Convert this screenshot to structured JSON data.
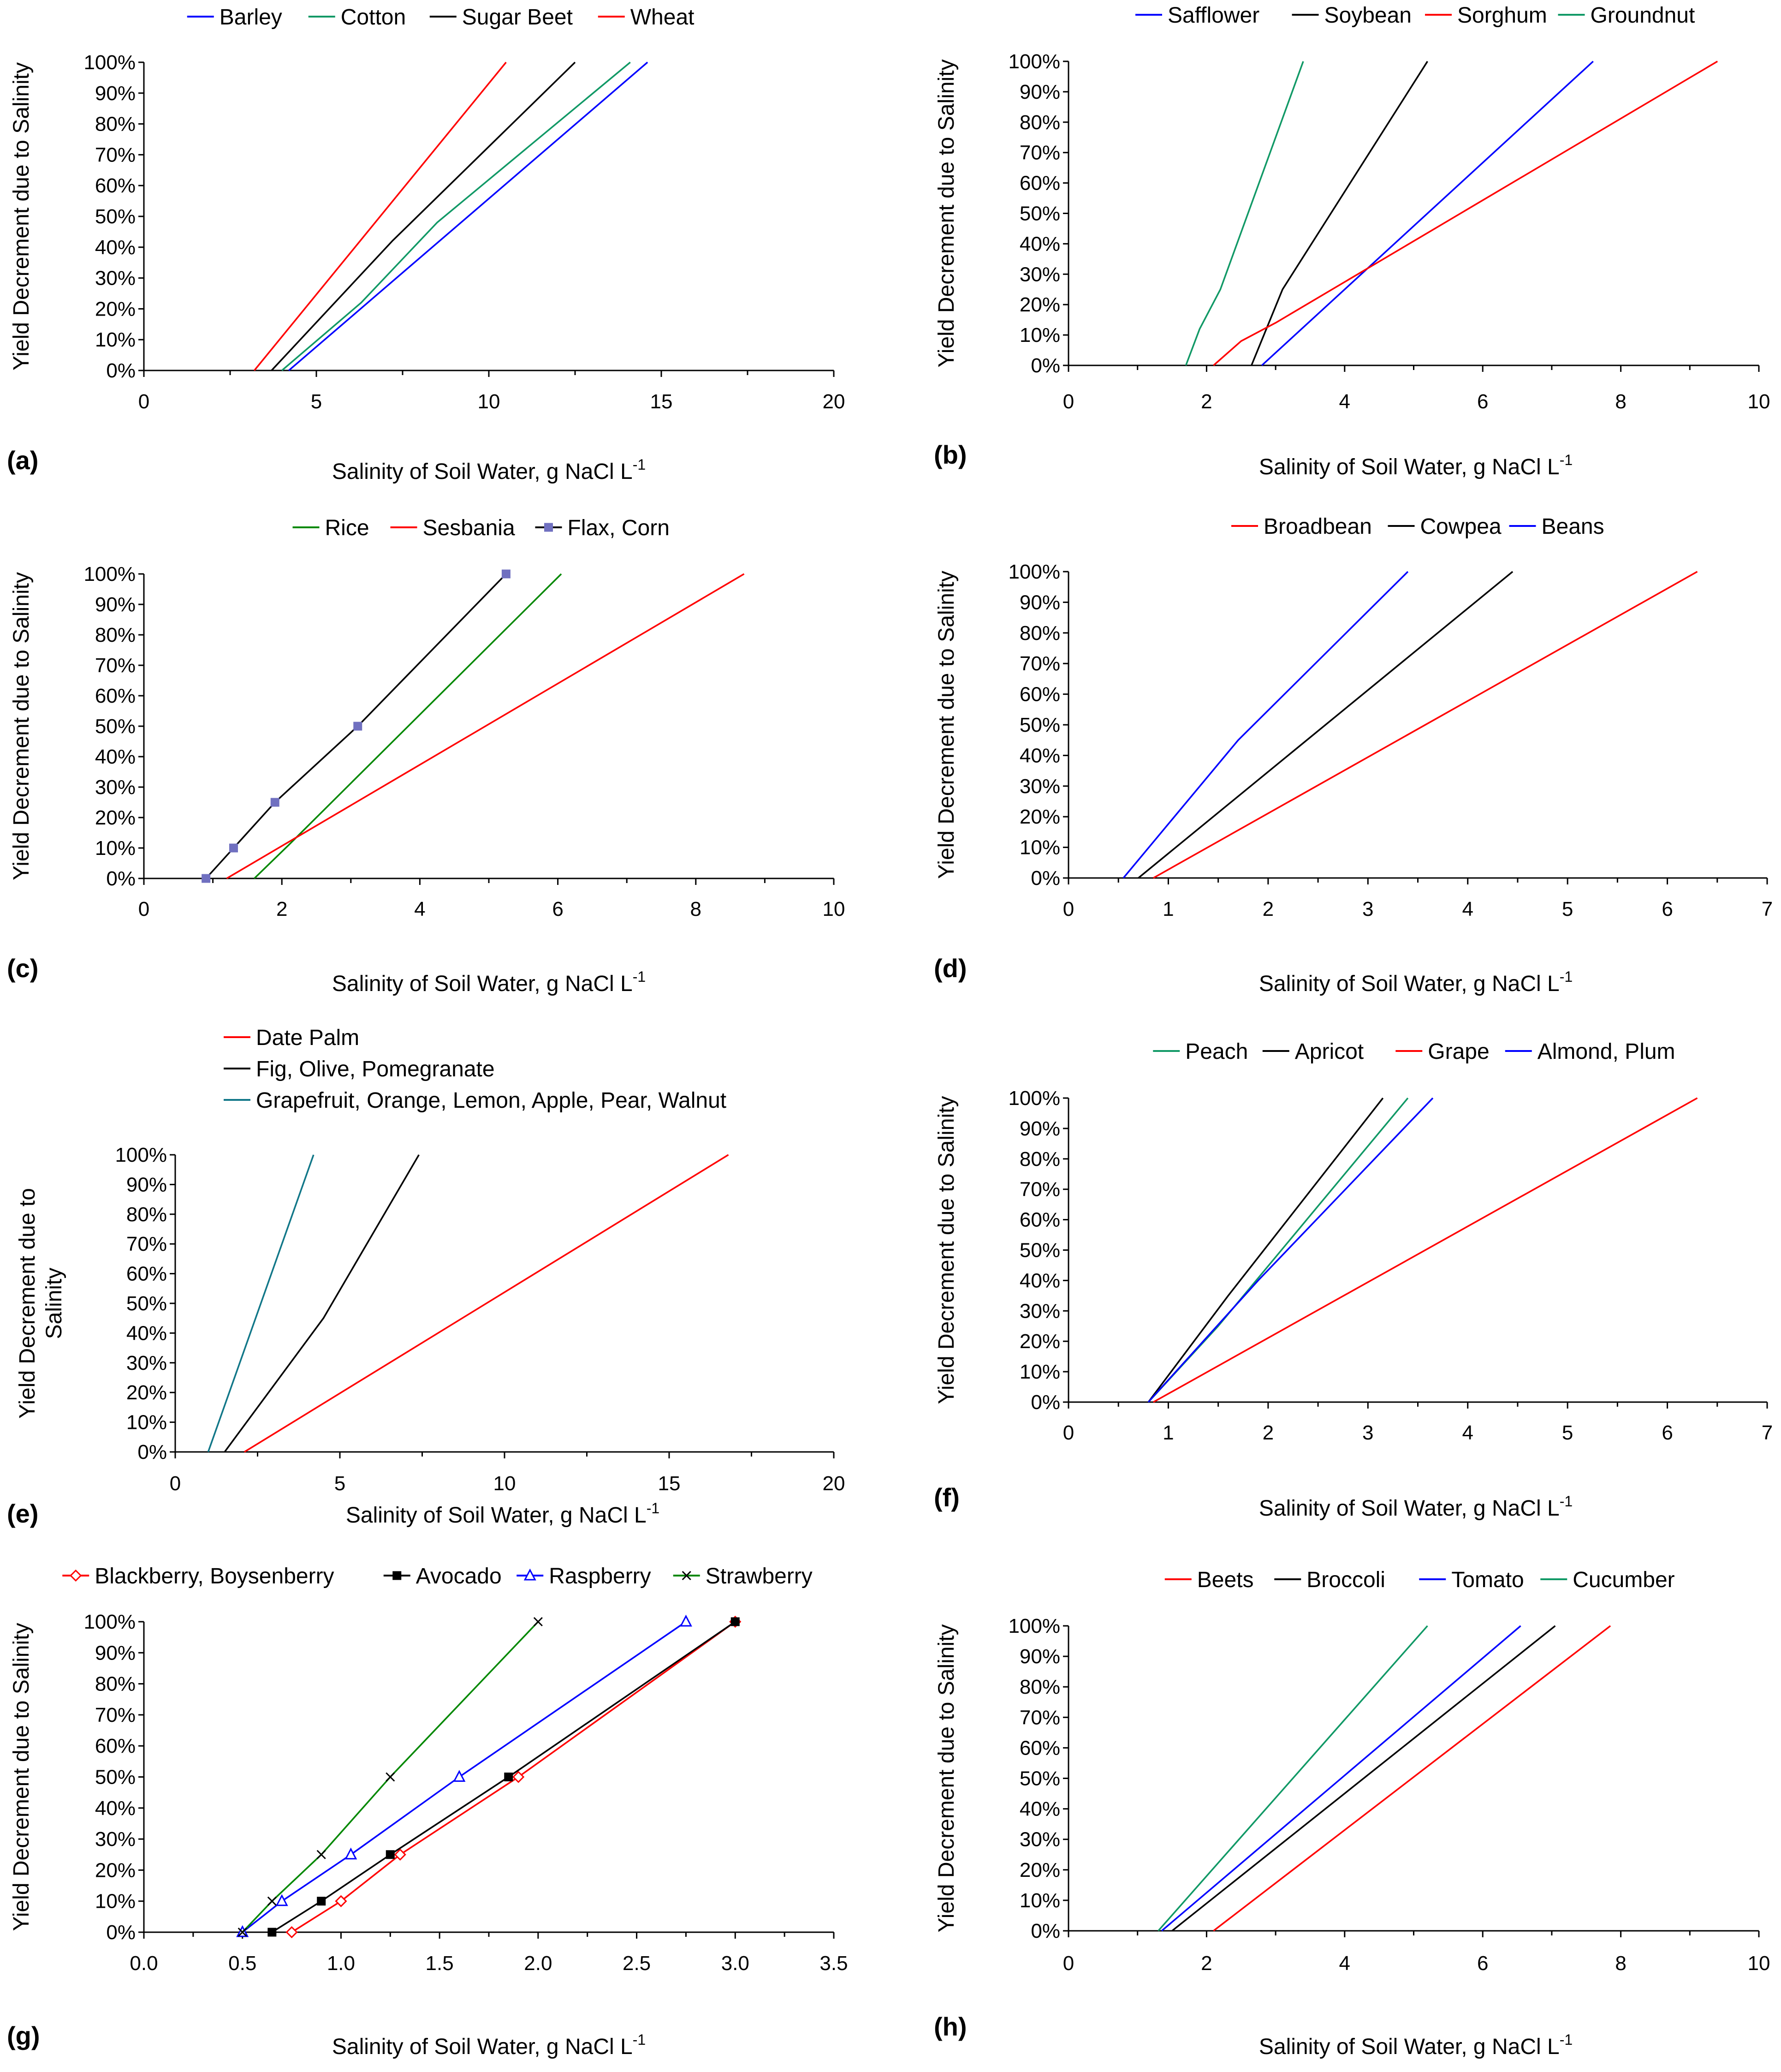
{
  "chart_data": [
    {
      "type": "line",
      "panel": "(a)",
      "xlabel": "Salinity of Soil Water, g NaCl L",
      "xlabel_sup": "-1",
      "ylabel": [
        "Yield Decrement due to Salinity"
      ],
      "xlim": [
        0,
        20
      ],
      "xticks": [
        0,
        5,
        10,
        15,
        20
      ],
      "xtick_labels": [
        "0",
        "5",
        "10",
        "15",
        "20"
      ],
      "ylim": [
        0,
        100
      ],
      "yticks": [
        0,
        10,
        20,
        30,
        40,
        50,
        60,
        70,
        80,
        90,
        100
      ],
      "ytick_labels": [
        "0%",
        "10%",
        "20%",
        "30%",
        "40%",
        "50%",
        "60%",
        "70%",
        "80%",
        "90%",
        "100%"
      ],
      "legend_rows": [
        [
          0,
          1,
          2,
          3
        ]
      ],
      "series": [
        {
          "name": "Barley",
          "color": "#0000ff",
          "x": [
            4.2,
            14.6
          ],
          "y": [
            0,
            100
          ]
        },
        {
          "name": "Cotton",
          "color": "#119966",
          "x": [
            4.0,
            6.3,
            8.5,
            14.1
          ],
          "y": [
            0,
            22,
            48,
            100
          ]
        },
        {
          "name": "Sugar Beet",
          "color": "#000000",
          "x": [
            3.7,
            7.2,
            12.5
          ],
          "y": [
            0,
            42,
            100
          ]
        },
        {
          "name": "Wheat",
          "color": "#ff0000",
          "x": [
            3.2,
            10.5
          ],
          "y": [
            0,
            100
          ]
        }
      ]
    },
    {
      "type": "line",
      "panel": "(b)",
      "xlabel": "Salinity of Soil Water, g NaCl L",
      "xlabel_sup": "-1",
      "ylabel": [
        "Yield Decrement due to Salinity"
      ],
      "xlim": [
        0,
        10
      ],
      "xticks": [
        0,
        2,
        4,
        6,
        8,
        10
      ],
      "xtick_labels": [
        "0",
        "2",
        "4",
        "6",
        "8",
        "10"
      ],
      "ylim": [
        0,
        100
      ],
      "yticks": [
        0,
        10,
        20,
        30,
        40,
        50,
        60,
        70,
        80,
        90,
        100
      ],
      "ytick_labels": [
        "0%",
        "10%",
        "20%",
        "30%",
        "40%",
        "50%",
        "60%",
        "70%",
        "80%",
        "90%",
        "100%"
      ],
      "legend_rows": [
        [
          0,
          1,
          2,
          3
        ]
      ],
      "series": [
        {
          "name": "Safflower",
          "color": "#0000ff",
          "x": [
            2.8,
            7.6
          ],
          "y": [
            0,
            100
          ]
        },
        {
          "name": "Soybean",
          "color": "#000000",
          "x": [
            2.65,
            3.1,
            5.2
          ],
          "y": [
            0,
            25,
            100
          ]
        },
        {
          "name": "Sorghum",
          "color": "#ff0000",
          "x": [
            2.1,
            2.5,
            3.0,
            9.4
          ],
          "y": [
            0,
            8,
            14,
            100
          ]
        },
        {
          "name": "Groundnut",
          "color": "#119966",
          "x": [
            1.7,
            1.9,
            2.2,
            3.4
          ],
          "y": [
            0,
            12,
            25,
            100
          ]
        }
      ]
    },
    {
      "type": "line",
      "panel": "(c)",
      "xlabel": "Salinity of Soil Water, g NaCl L",
      "xlabel_sup": "-1",
      "ylabel": [
        "Yield Decrement due to Salinity"
      ],
      "xlim": [
        0,
        10
      ],
      "xticks": [
        0,
        2,
        4,
        6,
        8,
        10
      ],
      "xtick_labels": [
        "0",
        "2",
        "4",
        "6",
        "8",
        "10"
      ],
      "ylim": [
        0,
        100
      ],
      "yticks": [
        0,
        10,
        20,
        30,
        40,
        50,
        60,
        70,
        80,
        90,
        100
      ],
      "ytick_labels": [
        "0%",
        "10%",
        "20%",
        "30%",
        "40%",
        "50%",
        "60%",
        "70%",
        "80%",
        "90%",
        "100%"
      ],
      "legend_rows": [
        [
          0,
          1,
          2
        ]
      ],
      "series": [
        {
          "name": "Rice",
          "color": "#008800",
          "x": [
            1.6,
            2.1,
            6.05
          ],
          "y": [
            0,
            11,
            100
          ]
        },
        {
          "name": "Sesbania",
          "color": "#ff0000",
          "x": [
            1.2,
            8.7
          ],
          "y": [
            0,
            100
          ]
        },
        {
          "name": "Flax, Corn",
          "color": "#000000",
          "marker": "square",
          "marker_color": "#7070c0",
          "x": [
            0.9,
            1.3,
            1.9,
            3.1,
            5.25
          ],
          "y": [
            0,
            10,
            25,
            50,
            100
          ]
        }
      ]
    },
    {
      "type": "line",
      "panel": "(d)",
      "xlabel": "Salinity of Soil Water, g NaCl L",
      "xlabel_sup": "-1",
      "ylabel": [
        "Yield Decrement due to Salinity"
      ],
      "xlim": [
        0,
        7
      ],
      "xticks": [
        0,
        1,
        2,
        3,
        4,
        5,
        6,
        7
      ],
      "xtick_labels": [
        "0",
        "1",
        "2",
        "3",
        "4",
        "5",
        "6",
        "7"
      ],
      "ylim": [
        0,
        100
      ],
      "yticks": [
        0,
        10,
        20,
        30,
        40,
        50,
        60,
        70,
        80,
        90,
        100
      ],
      "ytick_labels": [
        "0%",
        "10%",
        "20%",
        "30%",
        "40%",
        "50%",
        "60%",
        "70%",
        "80%",
        "90%",
        "100%"
      ],
      "legend_rows": [
        [
          0,
          1,
          2
        ]
      ],
      "series": [
        {
          "name": "Broadbean",
          "color": "#ff0000",
          "x": [
            0.85,
            6.3
          ],
          "y": [
            0,
            100
          ]
        },
        {
          "name": "Cowpea",
          "color": "#000000",
          "x": [
            0.7,
            4.45
          ],
          "y": [
            0,
            100
          ]
        },
        {
          "name": "Beans",
          "color": "#0000ff",
          "x": [
            0.55,
            1.7,
            3.4
          ],
          "y": [
            0,
            45,
            100
          ]
        }
      ]
    },
    {
      "type": "line",
      "panel": "(e)",
      "xlabel": "Salinity of Soil Water, g NaCl L",
      "xlabel_sup": "-1",
      "ylabel": [
        "Yield Decrement due to",
        "Salinity"
      ],
      "xlim": [
        0,
        20
      ],
      "xticks": [
        0,
        5,
        10,
        15,
        20
      ],
      "xtick_labels": [
        "0",
        "5",
        "10",
        "15",
        "20"
      ],
      "ylim": [
        0,
        100
      ],
      "yticks": [
        0,
        10,
        20,
        30,
        40,
        50,
        60,
        70,
        80,
        90,
        100
      ],
      "ytick_labels": [
        "0%",
        "10%",
        "20%",
        "30%",
        "40%",
        "50%",
        "60%",
        "70%",
        "80%",
        "90%",
        "100%"
      ],
      "legend_rows": [
        [
          0
        ],
        [
          1
        ],
        [
          2
        ]
      ],
      "series": [
        {
          "name": "Date Palm",
          "color": "#ff0000",
          "x": [
            2.1,
            16.8
          ],
          "y": [
            0,
            100
          ]
        },
        {
          "name": "Fig, Olive, Pomegranate",
          "color": "#000000",
          "x": [
            1.5,
            4.5,
            7.4
          ],
          "y": [
            0,
            45,
            100
          ]
        },
        {
          "name": "Grapefruit, Orange, Lemon, Apple, Pear, Walnut",
          "color": "#117788",
          "x": [
            1.0,
            4.2
          ],
          "y": [
            0,
            100
          ]
        }
      ]
    },
    {
      "type": "line",
      "panel": "(f)",
      "xlabel": "Salinity of Soil Water, g NaCl L",
      "xlabel_sup": "-1",
      "ylabel": [
        "Yield Decrement due to Salinity"
      ],
      "xlim": [
        0,
        7
      ],
      "xticks": [
        0,
        1,
        2,
        3,
        4,
        5,
        6,
        7
      ],
      "xtick_labels": [
        "0",
        "1",
        "2",
        "3",
        "4",
        "5",
        "6",
        "7"
      ],
      "ylim": [
        0,
        100
      ],
      "yticks": [
        0,
        10,
        20,
        30,
        40,
        50,
        60,
        70,
        80,
        90,
        100
      ],
      "ytick_labels": [
        "0%",
        "10%",
        "20%",
        "30%",
        "40%",
        "50%",
        "60%",
        "70%",
        "80%",
        "90%",
        "100%"
      ],
      "legend_rows": [
        [
          0,
          1,
          2,
          3
        ]
      ],
      "series": [
        {
          "name": "Peach",
          "color": "#119966",
          "x": [
            0.8,
            1.5,
            3.4
          ],
          "y": [
            0,
            25,
            100
          ]
        },
        {
          "name": "Apricot",
          "color": "#000000",
          "x": [
            0.8,
            1.6,
            3.15
          ],
          "y": [
            0,
            35,
            100
          ]
        },
        {
          "name": "Grape",
          "color": "#ff0000",
          "x": [
            0.85,
            6.3
          ],
          "y": [
            0,
            100
          ]
        },
        {
          "name": "Almond, Plum",
          "color": "#0000ff",
          "x": [
            0.8,
            1.9,
            3.65
          ],
          "y": [
            0,
            40,
            100
          ]
        }
      ]
    },
    {
      "type": "line",
      "panel": "(g)",
      "xlabel": "Salinity of Soil Water, g NaCl L",
      "xlabel_sup": "-1",
      "ylabel": [
        "Yield Decrement due to Salinity"
      ],
      "xlim": [
        0,
        3.5
      ],
      "xticks": [
        0,
        0.5,
        1.0,
        1.5,
        2.0,
        2.5,
        3.0,
        3.5
      ],
      "xtick_labels": [
        "0.0",
        "0.5",
        "1.0",
        "1.5",
        "2.0",
        "2.5",
        "3.0",
        "3.5"
      ],
      "ylim": [
        0,
        100
      ],
      "yticks": [
        0,
        10,
        20,
        30,
        40,
        50,
        60,
        70,
        80,
        90,
        100
      ],
      "ytick_labels": [
        "0%",
        "10%",
        "20%",
        "30%",
        "40%",
        "50%",
        "60%",
        "70%",
        "80%",
        "90%",
        "100%"
      ],
      "legend_rows": [
        [
          0,
          1,
          2,
          3
        ]
      ],
      "series": [
        {
          "name": "Blackberry, Boysenberry",
          "color": "#ff0000",
          "marker": "diamond",
          "marker_color": "#ff0000",
          "x": [
            0.75,
            1.0,
            1.3,
            1.9,
            3.0
          ],
          "y": [
            0,
            10,
            25,
            50,
            100
          ]
        },
        {
          "name": "Avocado",
          "color": "#000000",
          "marker": "square",
          "marker_color": "#000000",
          "x": [
            0.65,
            0.9,
            1.25,
            1.85,
            3.0
          ],
          "y": [
            0,
            10,
            25,
            50,
            100
          ]
        },
        {
          "name": "Raspberry",
          "color": "#0000ff",
          "marker": "triangle",
          "marker_color": "#0000ff",
          "x": [
            0.5,
            0.7,
            1.05,
            1.6,
            2.75
          ],
          "y": [
            0,
            10,
            25,
            50,
            100
          ]
        },
        {
          "name": "Strawberry",
          "color": "#008800",
          "marker": "cross",
          "marker_color": "#000000",
          "x": [
            0.5,
            0.65,
            0.9,
            1.25,
            2.0
          ],
          "y": [
            0,
            10,
            25,
            50,
            100
          ]
        }
      ]
    },
    {
      "type": "line",
      "panel": "(h)",
      "xlabel": "Salinity of Soil Water, g NaCl L",
      "xlabel_sup": "-1",
      "ylabel": [
        "Yield Decrement due to Salinity"
      ],
      "xlim": [
        0,
        10
      ],
      "xticks": [
        0,
        2,
        4,
        6,
        8,
        10
      ],
      "xtick_labels": [
        "0",
        "2",
        "4",
        "6",
        "8",
        "10"
      ],
      "ylim": [
        0,
        100
      ],
      "yticks": [
        0,
        10,
        20,
        30,
        40,
        50,
        60,
        70,
        80,
        90,
        100
      ],
      "ytick_labels": [
        "0%",
        "10%",
        "20%",
        "30%",
        "40%",
        "50%",
        "60%",
        "70%",
        "80%",
        "90%",
        "100%"
      ],
      "legend_rows": [
        [
          0,
          1,
          2,
          3
        ]
      ],
      "series": [
        {
          "name": "Beets",
          "color": "#ff0000",
          "x": [
            2.1,
            7.85
          ],
          "y": [
            0,
            100
          ]
        },
        {
          "name": "Broccoli",
          "color": "#000000",
          "x": [
            1.5,
            7.05
          ],
          "y": [
            0,
            100
          ]
        },
        {
          "name": "Tomato",
          "color": "#0000ff",
          "x": [
            1.35,
            6.55
          ],
          "y": [
            0,
            100
          ]
        },
        {
          "name": "Cucumber",
          "color": "#119966",
          "x": [
            1.3,
            5.2
          ],
          "y": [
            0,
            100
          ]
        }
      ]
    }
  ]
}
